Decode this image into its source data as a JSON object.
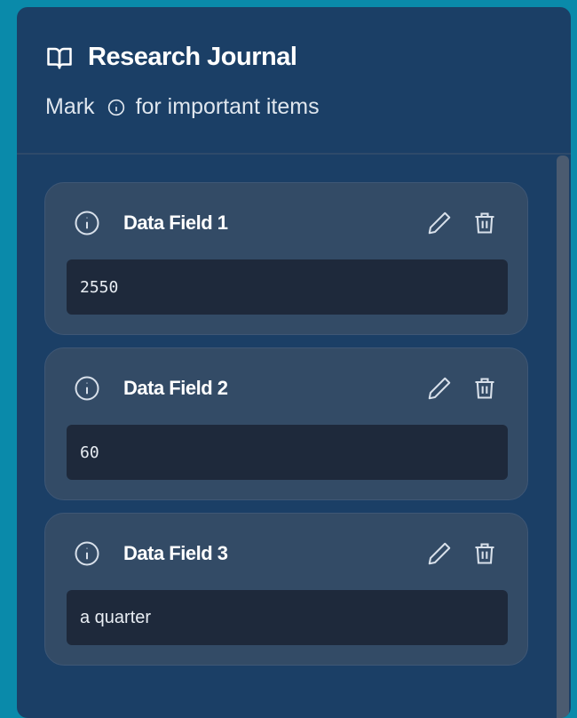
{
  "header": {
    "title": "Research Journal",
    "subtitle_before": "Mark",
    "subtitle_after": "for important items",
    "title_icon": "book-open-icon",
    "subtitle_icon": "info-icon"
  },
  "colors": {
    "background": "#0a8aaa",
    "panel": "#1b3f66",
    "card": "#334b66",
    "field": "#1e293b"
  },
  "cards": [
    {
      "label": "Data Field 1",
      "value": "2550"
    },
    {
      "label": "Data Field 2",
      "value": "60"
    },
    {
      "label": "Data Field 3",
      "value": "a quarter"
    }
  ]
}
